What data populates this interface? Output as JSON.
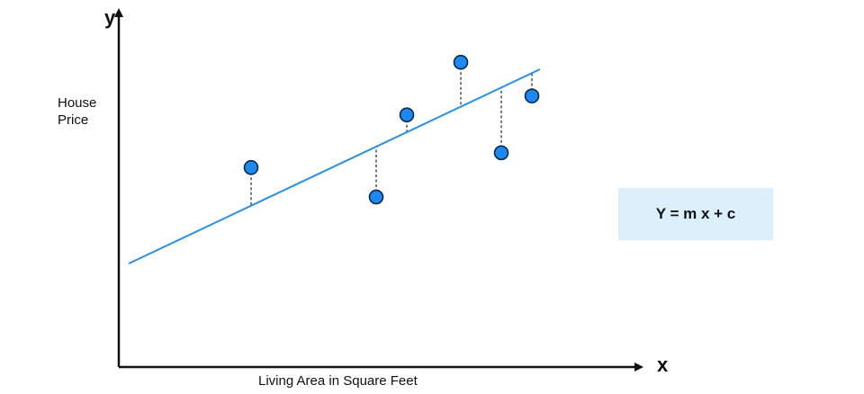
{
  "labels": {
    "y_axis_letter": "y",
    "x_axis_letter": "x",
    "y_axis_title": "House\nPrice",
    "x_axis_title": "Living Area in Square Feet"
  },
  "equation": "Y = m x + c",
  "colors": {
    "axis": "#111111",
    "regression_line": "#2a8fe6",
    "point_fill": "#1e88f0",
    "point_stroke": "#0a2a4a",
    "residual": "#333333",
    "equation_box": "#dcf0fc"
  },
  "chart_data": {
    "type": "scatter",
    "title": "",
    "xlabel": "Living Area in Square Feet",
    "ylabel": "House\nPrice",
    "grid": false,
    "fit_line": {
      "equation": "Y = m x + c"
    },
    "points": [
      {
        "x": 1,
        "y": 8.0
      },
      {
        "x": 2,
        "y": 6.6
      },
      {
        "x": 3,
        "y": 10.5
      },
      {
        "x": 4,
        "y": 13.0
      },
      {
        "x": 5,
        "y": 8.7
      },
      {
        "x": 6,
        "y": 11.4
      }
    ]
  }
}
